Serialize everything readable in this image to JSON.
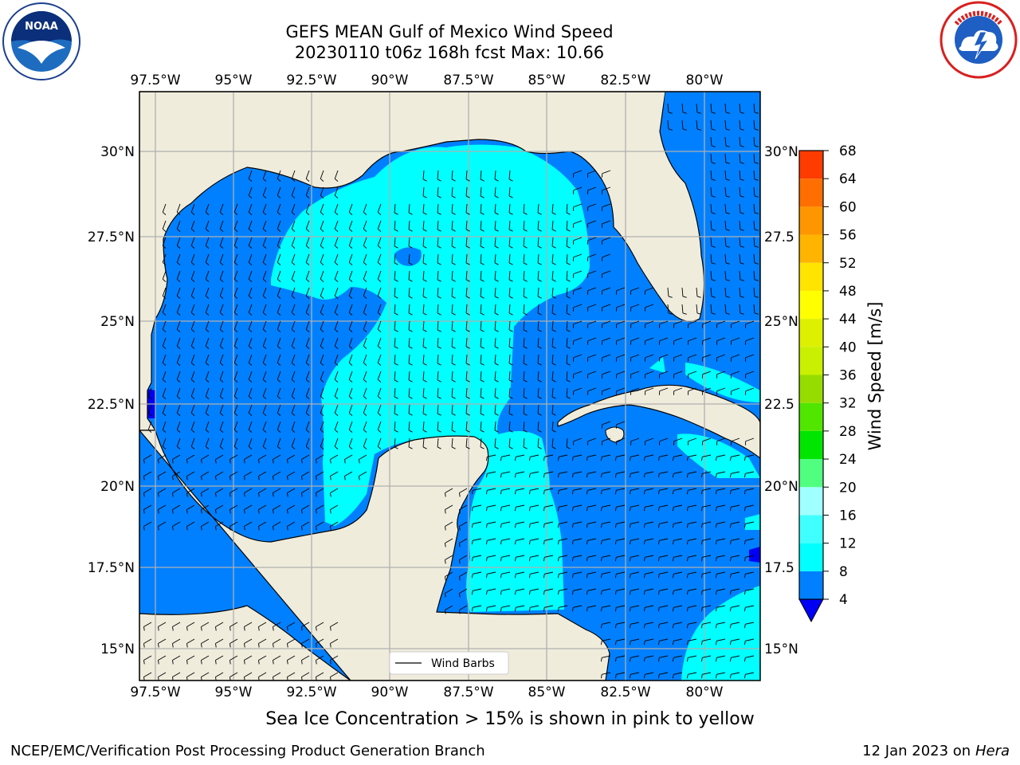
{
  "header": {
    "title_line1": "GEFS MEAN Gulf of Mexico Wind Speed",
    "title_line2": "20230110 t06z 168h fcst   Max: 10.66"
  },
  "logos": {
    "left": {
      "icon": "noaa-logo",
      "text": "NOAA",
      "ring_text": "NATIONAL OCEANIC AND ATMOSPHERIC ADMINISTRATION · U.S. DEPARTMENT OF COMMERCE"
    },
    "right": {
      "icon": "national-weather-service-logo",
      "ring_text": "NATIONAL WEATHER SERVICE"
    }
  },
  "map": {
    "lon_labels": [
      "97.5°W",
      "95°W",
      "92.5°W",
      "90°W",
      "87.5°W",
      "85°W",
      "82.5°W",
      "80°W"
    ],
    "lat_labels": [
      "30°N",
      "27.5°N",
      "25°N",
      "22.5°N",
      "20°N",
      "17.5°N",
      "15°N"
    ],
    "lat_labels_right": [
      "30°N",
      "27.5",
      "25°N",
      "22.5",
      "20°N",
      "17.5",
      "15°N"
    ],
    "legend_label": "Wind Barbs",
    "colors": {
      "land": "#efecdc",
      "grid": "#b0b0b0",
      "wind_4_8": "#0080ff",
      "wind_lt4": "#0000f5",
      "wind_8_12": "#00ffff"
    }
  },
  "colorbar": {
    "label": "Wind Speed [m/s]",
    "ticks": [
      "4",
      "8",
      "12",
      "16",
      "20",
      "24",
      "28",
      "32",
      "36",
      "40",
      "44",
      "48",
      "52",
      "56",
      "60",
      "64",
      "68"
    ],
    "colors": [
      "#0080ff",
      "#00ffff",
      "#40ffff",
      "#a0ffff",
      "#50ff80",
      "#00e600",
      "#50e600",
      "#96dc00",
      "#c8f000",
      "#dcf000",
      "#ffff00",
      "#ffe400",
      "#ffb400",
      "#ff9600",
      "#ff6e00",
      "#ff3c00",
      "#ff0000"
    ],
    "extend_color": "#0000f5"
  },
  "caption": "Sea Ice Concentration > 15% is shown in pink to yellow",
  "footer": {
    "left": "NCEP/EMC/Verification Post Processing Product Generation Branch",
    "right_prefix": "12 Jan 2023 on ",
    "right_host": "Hera"
  }
}
